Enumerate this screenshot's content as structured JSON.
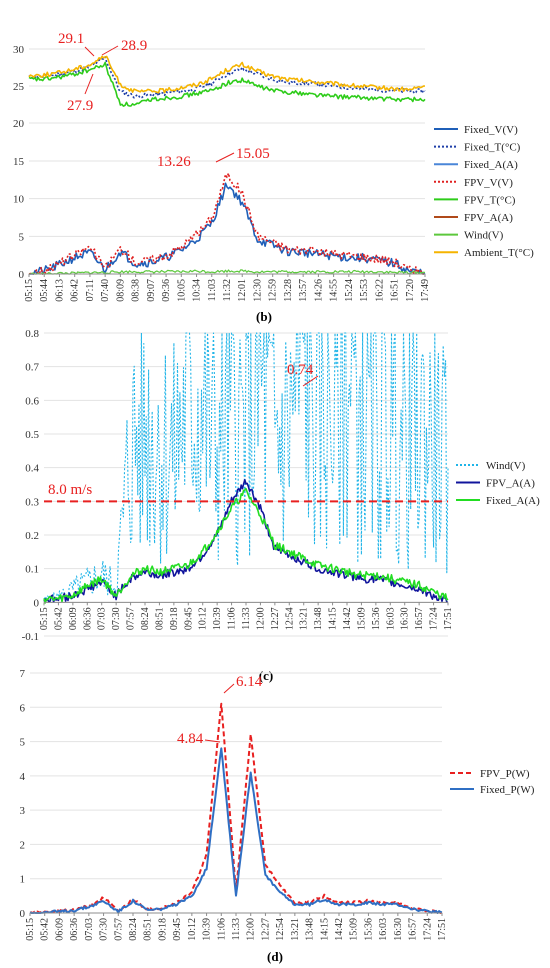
{
  "chart_data": [
    {
      "panel": "(b)",
      "type": "line",
      "x_ticks": [
        "05:15",
        "05:44",
        "06:13",
        "06:42",
        "07:11",
        "07:40",
        "08:09",
        "08:38",
        "09:07",
        "09:36",
        "10:05",
        "10:34",
        "11:03",
        "11:32",
        "12:01",
        "12:30",
        "12:59",
        "13:28",
        "13:57",
        "14:26",
        "14:55",
        "15:24",
        "15:53",
        "16:22",
        "16:51",
        "17:20",
        "17:49"
      ],
      "top": {
        "ylim": [
          20,
          30
        ],
        "yticks": [
          20,
          25,
          30
        ],
        "series": [
          {
            "name": "Fixed_T(°C)",
            "color": "#1f3fa8",
            "dash": "2,2",
            "values": [
              26.2,
              26.3,
              26.6,
              27.0,
              27.6,
              28.8,
              24.2,
              23.6,
              23.8,
              24.0,
              24.3,
              24.6,
              25.4,
              26.6,
              27.3,
              26.6,
              25.9,
              25.5,
              25.4,
              25.2,
              25.0,
              24.8,
              24.6,
              24.5,
              24.4,
              24.3,
              24.3
            ]
          },
          {
            "name": "FPV_T(°C)",
            "color": "#2ecc1a",
            "dash": "",
            "values": [
              25.9,
              25.9,
              26.2,
              26.6,
              27.2,
              27.9,
              22.6,
              22.4,
              23.2,
              23.4,
              23.6,
              24.0,
              24.4,
              25.4,
              25.8,
              25.0,
              24.4,
              24.2,
              24.0,
              23.8,
              23.6,
              23.5,
              23.4,
              23.3,
              23.2,
              23.2,
              23.2
            ]
          },
          {
            "name": "Ambient_T(°C)",
            "color": "#f5b400",
            "dash": "",
            "values": [
              26.4,
              26.5,
              26.8,
              27.3,
              27.9,
              29.1,
              25.2,
              24.2,
              24.3,
              24.4,
              24.8,
              25.2,
              26.0,
              27.2,
              27.9,
              27.0,
              26.3,
              25.9,
              25.7,
              25.5,
              25.3,
              25.1,
              24.9,
              24.8,
              24.6,
              24.5,
              25.0
            ]
          }
        ],
        "annotations": [
          "29.1",
          "28.9",
          "27.9"
        ]
      },
      "bottom": {
        "ylim": [
          0,
          15
        ],
        "yticks": [
          0,
          5,
          10,
          15
        ],
        "series": [
          {
            "name": "Fixed_V(V)",
            "color": "#1f5fb8",
            "dash": "",
            "values": [
              0.1,
              0.4,
              1.2,
              2.2,
              2.8,
              0.6,
              3.0,
              1.4,
              1.6,
              2.2,
              3.2,
              4.6,
              6.8,
              12.0,
              9.5,
              4.6,
              3.8,
              3.0,
              2.9,
              2.6,
              2.4,
              2.2,
              2.1,
              1.8,
              1.4,
              0.4,
              0.1
            ]
          },
          {
            "name": "FPV_V(V)",
            "color": "#e02020",
            "dash": "2,2",
            "values": [
              0.1,
              0.5,
              1.4,
              2.5,
              3.6,
              0.7,
              3.4,
              1.6,
              1.9,
              2.5,
              3.6,
              5.2,
              7.4,
              13.3,
              10.7,
              5.1,
              4.2,
              3.3,
              3.2,
              2.9,
              2.7,
              2.5,
              2.3,
              2.0,
              1.6,
              0.5,
              0.1
            ]
          },
          {
            "name": "Wind(V)",
            "color": "#5cc83c",
            "dash": "",
            "values": [
              0.0,
              0.0,
              0.1,
              0.1,
              0.2,
              0.2,
              0.3,
              0.3,
              0.3,
              0.3,
              0.3,
              0.4,
              0.3,
              0.4,
              0.4,
              0.3,
              0.3,
              0.3,
              0.3,
              0.3,
              0.3,
              0.3,
              0.3,
              0.3,
              0.2,
              0.2,
              0.2
            ]
          }
        ],
        "annotations": [
          "13.26",
          "15.05"
        ]
      },
      "legend": [
        "Fixed_V(V)",
        "Fixed_T(°C)",
        "Fixed_A(A)",
        "FPV_V(V)",
        "FPV_T(°C)",
        "FPV_A(A)",
        "Wind(V)",
        "Ambient_T(°C)"
      ]
    },
    {
      "panel": "(c)",
      "type": "line",
      "x_ticks": [
        "05:15",
        "05:42",
        "06:09",
        "06:36",
        "07:03",
        "07:30",
        "07:57",
        "08:24",
        "08:51",
        "09:18",
        "09:45",
        "10:12",
        "10:39",
        "11:06",
        "11:33",
        "12:00",
        "12:27",
        "12:54",
        "13:21",
        "13:48",
        "14:15",
        "14:42",
        "15:09",
        "15:36",
        "16:03",
        "16:30",
        "16:57",
        "17:24",
        "17:51"
      ],
      "ylim": [
        -0.1,
        0.8
      ],
      "yticks": [
        -0.1,
        0,
        0.1,
        0.2,
        0.3,
        0.4,
        0.5,
        0.6,
        0.7,
        0.8
      ],
      "series": [
        {
          "name": "Wind(V)",
          "color": "#1fb4e8",
          "dash": "2,2",
          "values": [
            0.01,
            0.02,
            0.04,
            0.06,
            0.08,
            0.05,
            0.46,
            0.52,
            0.48,
            0.44,
            0.62,
            0.58,
            0.47,
            0.55,
            0.5,
            0.66,
            0.48,
            0.53,
            0.74,
            0.52,
            0.6,
            0.7,
            0.55,
            0.5,
            0.58,
            0.46,
            0.52,
            0.48,
            0.4
          ]
        },
        {
          "name": "FPV_A(A)",
          "color": "#10149c",
          "dash": "",
          "values": [
            0.01,
            0.01,
            0.02,
            0.04,
            0.06,
            0.02,
            0.07,
            0.09,
            0.08,
            0.09,
            0.1,
            0.14,
            0.2,
            0.3,
            0.36,
            0.28,
            0.16,
            0.14,
            0.12,
            0.1,
            0.09,
            0.08,
            0.07,
            0.07,
            0.06,
            0.05,
            0.04,
            0.02,
            0.0
          ]
        },
        {
          "name": "Fixed_A(A)",
          "color": "#22dd22",
          "dash": "",
          "values": [
            0.01,
            0.01,
            0.02,
            0.05,
            0.07,
            0.02,
            0.08,
            0.1,
            0.09,
            0.1,
            0.11,
            0.15,
            0.21,
            0.28,
            0.33,
            0.26,
            0.17,
            0.15,
            0.13,
            0.11,
            0.1,
            0.09,
            0.08,
            0.08,
            0.07,
            0.06,
            0.05,
            0.03,
            0.01
          ]
        }
      ],
      "threshold": {
        "value": 0.3,
        "label": "8.0 m/s",
        "color": "#e82020"
      },
      "annotations": [
        "0.74"
      ],
      "legend": [
        "Wind(V)",
        "FPV_A(A)",
        "Fixed_A(A)"
      ]
    },
    {
      "panel": "(d)",
      "type": "line",
      "x_ticks": [
        "05:15",
        "05:42",
        "06:09",
        "06:36",
        "07:03",
        "07:30",
        "07:57",
        "08:24",
        "08:51",
        "09:18",
        "09:45",
        "10:12",
        "10:39",
        "11:06",
        "11:33",
        "12:00",
        "12:27",
        "12:54",
        "13:21",
        "13:48",
        "14:15",
        "14:42",
        "15:09",
        "15:36",
        "16:03",
        "16:30",
        "16:57",
        "17:24",
        "17:51"
      ],
      "ylim": [
        0,
        7
      ],
      "yticks": [
        0,
        1,
        2,
        3,
        4,
        5,
        6,
        7
      ],
      "series": [
        {
          "name": "FPV_P(W)",
          "color": "#e82020",
          "dash": "5,3",
          "values": [
            0.0,
            0.02,
            0.05,
            0.1,
            0.2,
            0.45,
            0.05,
            0.4,
            0.1,
            0.15,
            0.3,
            0.6,
            1.7,
            6.14,
            0.6,
            5.2,
            1.4,
            0.8,
            0.3,
            0.3,
            0.5,
            0.3,
            0.3,
            0.35,
            0.3,
            0.3,
            0.15,
            0.05,
            0.02
          ]
        },
        {
          "name": "Fixed_P(W)",
          "color": "#2f6fc4",
          "dash": "",
          "values": [
            0.0,
            0.02,
            0.04,
            0.08,
            0.18,
            0.35,
            0.04,
            0.35,
            0.08,
            0.12,
            0.25,
            0.5,
            1.3,
            4.84,
            0.5,
            4.1,
            1.1,
            0.6,
            0.25,
            0.25,
            0.4,
            0.25,
            0.25,
            0.3,
            0.25,
            0.25,
            0.12,
            0.04,
            0.02
          ]
        }
      ],
      "annotations": [
        "4.84",
        "6.14"
      ],
      "legend": [
        "FPV_P(W)",
        "Fixed_P(W)"
      ]
    }
  ],
  "labels": {
    "b": "(b)",
    "c": "(c)",
    "d": "(d)"
  },
  "annotations": {
    "b_29_1": "29.1",
    "b_28_9": "28.9",
    "b_27_9": "27.9",
    "b_13_26": "13.26",
    "b_15_05": "15.05",
    "c_0_74": "0.74",
    "c_threshold": "8.0 m/s",
    "d_4_84": "4.84",
    "d_6_14": "6.14"
  },
  "legend_b": [
    "Fixed_V(V)",
    "Fixed_T(°C)",
    "Fixed_A(A)",
    "FPV_V(V)",
    "FPV_T(°C)",
    "FPV_A(A)",
    "Wind(V)",
    "Ambient_T(°C)"
  ],
  "legend_c": [
    "Wind(V)",
    "FPV_A(A)",
    "Fixed_A(A)"
  ],
  "legend_d": [
    "FPV_P(W)",
    "Fixed_P(W)"
  ],
  "colors": {
    "annotation": "#e82020",
    "axis": "#7f7f7f",
    "grid": "#d9d9d9"
  }
}
